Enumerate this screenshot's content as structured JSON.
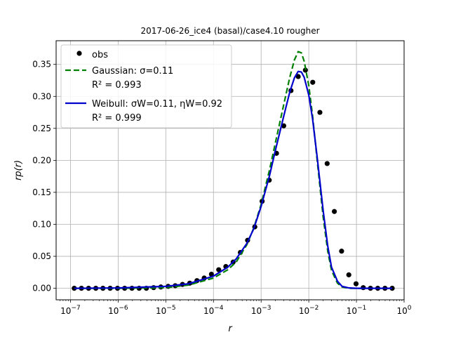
{
  "chart_data": {
    "type": "line",
    "title": "2017-06-26_ice4 (basal)/case4.10 rougher",
    "xlabel": "r",
    "ylabel": "rp(r)",
    "xscale": "log",
    "xlim": [
      5e-08,
      1.0
    ],
    "ylim": [
      -0.018,
      0.387
    ],
    "grid": true,
    "legend_position": "top-left",
    "x_ticks": [
      {
        "value": 1e-07,
        "label": "10^-7"
      },
      {
        "value": 1e-06,
        "label": "10^-6"
      },
      {
        "value": 1e-05,
        "label": "10^-5"
      },
      {
        "value": 0.0001,
        "label": "10^-4"
      },
      {
        "value": 0.001,
        "label": "10^-3"
      },
      {
        "value": 0.01,
        "label": "10^-2"
      },
      {
        "value": 0.1,
        "label": "10^-1"
      },
      {
        "value": 1,
        "label": "10^0"
      }
    ],
    "y_ticks": [
      0.0,
      0.05,
      0.1,
      0.15,
      0.2,
      0.25,
      0.3,
      0.35
    ],
    "y_tick_labels": [
      "0.00",
      "0.05",
      "0.10",
      "0.15",
      "0.20",
      "0.25",
      "0.30",
      "0.35"
    ],
    "legend": [
      {
        "label": "obs",
        "style": "marker",
        "color": "#000000"
      },
      {
        "label": "Gaussian: σ=0.11",
        "label2": "R² = 0.993",
        "style": "dashed",
        "color": "#008000"
      },
      {
        "label": "Weibull: σW=0.11, ηW=0.92",
        "label2": "R² = 0.999",
        "style": "solid",
        "color": "#0000cc"
      }
    ],
    "series": [
      {
        "name": "obs",
        "type": "scatter",
        "color": "#000000",
        "x": [
          1.2e-07,
          1.7e-07,
          2.4e-07,
          3.4e-07,
          4.8e-07,
          6.8e-07,
          9.7e-07,
          1.37e-06,
          1.95e-06,
          2.76e-06,
          3.91e-06,
          5.55e-06,
          7.87e-06,
          1.12e-05,
          1.58e-05,
          2.24e-05,
          3.18e-05,
          4.51e-05,
          6.39e-05,
          9.06e-05,
          0.000129,
          0.000182,
          0.000259,
          0.000367,
          0.00052,
          0.000737,
          0.00105,
          0.00148,
          0.0021,
          0.00298,
          0.00423,
          0.006,
          0.0085,
          0.0121,
          0.0171,
          0.0243,
          0.0344,
          0.0488,
          0.0692,
          0.0981,
          0.139,
          0.197,
          0.28,
          0.397,
          0.563
        ],
        "y": [
          0,
          0,
          0,
          0,
          0,
          0,
          0,
          0,
          0,
          0,
          0,
          0.001,
          0.002,
          0.003,
          0.004,
          0.006,
          0.008,
          0.012,
          0.016,
          0.022,
          0.029,
          0.034,
          0.041,
          0.056,
          0.075,
          0.096,
          0.136,
          0.169,
          0.211,
          0.254,
          0.309,
          0.331,
          0.341,
          0.322,
          0.275,
          0.195,
          0.12,
          0.058,
          0.021,
          0.007,
          0.001,
          0,
          0,
          0,
          0
        ]
      },
      {
        "name": "Gaussian: σ=0.11",
        "type": "line",
        "style": "dashed",
        "color": "#008000",
        "x": [
          1.2e-07,
          1e-06,
          1e-05,
          3e-05,
          0.0001,
          0.0002,
          0.0003,
          0.0005,
          0.0007,
          0.001,
          0.0015,
          0.002,
          0.003,
          0.004,
          0.005,
          0.006,
          0.007,
          0.008,
          0.01,
          0.012,
          0.015,
          0.02,
          0.025,
          0.03,
          0.04,
          0.05,
          0.07,
          0.1,
          0.2,
          0.563
        ],
        "y": [
          0,
          0,
          0.001,
          0.005,
          0.016,
          0.029,
          0.041,
          0.068,
          0.094,
          0.131,
          0.185,
          0.228,
          0.288,
          0.33,
          0.357,
          0.37,
          0.368,
          0.355,
          0.317,
          0.27,
          0.2,
          0.112,
          0.058,
          0.028,
          0.008,
          0.002,
          0,
          0,
          0,
          0
        ]
      },
      {
        "name": "Weibull: σW=0.11, ηW=0.92",
        "type": "line",
        "style": "solid",
        "color": "#0000cc",
        "x": [
          1.2e-07,
          1e-06,
          1e-05,
          3e-05,
          0.0001,
          0.0002,
          0.0003,
          0.0005,
          0.0007,
          0.001,
          0.0015,
          0.002,
          0.003,
          0.004,
          0.005,
          0.006,
          0.007,
          0.008,
          0.01,
          0.012,
          0.015,
          0.02,
          0.025,
          0.03,
          0.04,
          0.05,
          0.07,
          0.1,
          0.2,
          0.563
        ],
        "y": [
          0,
          0.0005,
          0.003,
          0.007,
          0.019,
          0.033,
          0.046,
          0.07,
          0.093,
          0.128,
          0.176,
          0.216,
          0.27,
          0.307,
          0.329,
          0.339,
          0.338,
          0.33,
          0.302,
          0.265,
          0.205,
          0.122,
          0.066,
          0.033,
          0.011,
          0.003,
          0.0005,
          0,
          0,
          0
        ]
      }
    ]
  }
}
